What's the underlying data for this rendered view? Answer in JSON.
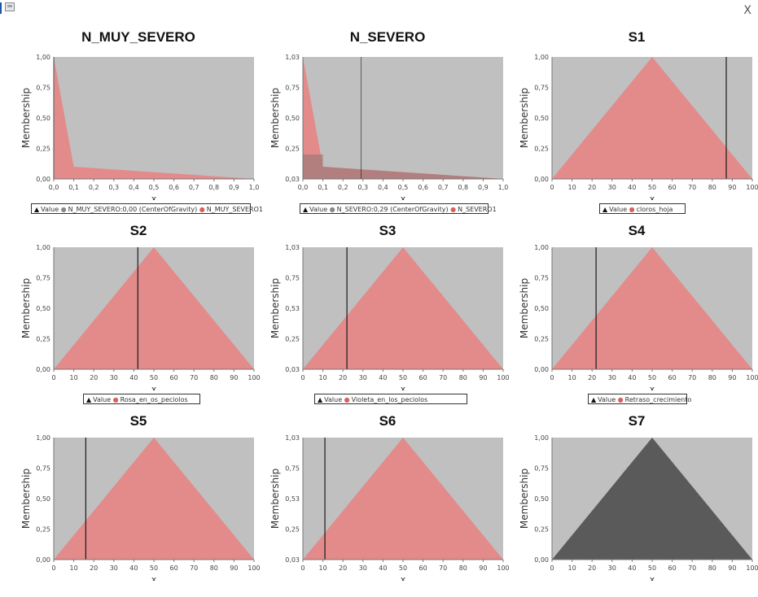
{
  "window": {
    "close_label": "X"
  },
  "axes_common": {
    "ylabel": "Membership",
    "xlabel": "x"
  },
  "colors": {
    "plot_bg": "#c0c0c0",
    "membership_fill": "#e38a8a",
    "dark_fill": "#5a5a5a",
    "value_line": "#1a1a1a"
  },
  "panels": [
    {
      "title": "N_MUY_SEVERO",
      "ytick_labels": [
        "1,00",
        "0,75",
        "0,50",
        "0,25",
        "0,00"
      ],
      "xtick_labels": [
        "0,0",
        "0,1",
        "0,2",
        "0,3",
        "0,4",
        "0,5",
        "0,6",
        "0,7",
        "0,8",
        "0,9",
        "1,0"
      ],
      "legend": [
        {
          "marker": "▲",
          "label": "Value"
        },
        {
          "marker": "●",
          "label": "N_MUY_SEVERO:0,00 (CenterOfGravity)"
        },
        {
          "marker": "●",
          "label": "N_MUY_SEVERO1"
        }
      ]
    },
    {
      "title": "N_SEVERO",
      "ytick_labels": [
        "1,03",
        "0,75",
        "0,50",
        "0,25",
        "0,03"
      ],
      "xtick_labels": [
        "0,0",
        "0,1",
        "0,2",
        "0,3",
        "0,4",
        "0,5",
        "0,6",
        "0,7",
        "0,8",
        "0,9",
        "1,0"
      ],
      "legend": [
        {
          "marker": "▲",
          "label": "Value"
        },
        {
          "marker": "●",
          "label": "N_SEVERO:0,29 (CenterOfGravity)"
        },
        {
          "marker": "●",
          "label": "N_SEVERO1"
        }
      ]
    },
    {
      "title": "S1",
      "ytick_labels": [
        "1,00",
        "0,75",
        "0,50",
        "0,25",
        "0,00"
      ],
      "xtick_labels": [
        "0",
        "10",
        "20",
        "30",
        "40",
        "50",
        "60",
        "70",
        "80",
        "90",
        "100"
      ],
      "legend": [
        {
          "marker": "▲",
          "label": "Value"
        },
        {
          "marker": "●",
          "label": "cloros_hoja"
        }
      ]
    },
    {
      "title": "S2",
      "ytick_labels": [
        "1,00",
        "0,75",
        "0,50",
        "0,25",
        "0,00"
      ],
      "xtick_labels": [
        "0",
        "10",
        "20",
        "30",
        "40",
        "50",
        "60",
        "70",
        "80",
        "90",
        "100"
      ],
      "legend": [
        {
          "marker": "▲",
          "label": "Value"
        },
        {
          "marker": "●",
          "label": "Rosa_en_os_peciolos"
        }
      ]
    },
    {
      "title": "S3",
      "ytick_labels": [
        "1,03",
        "0,75",
        "0,53",
        "0,25",
        "0,03"
      ],
      "xtick_labels": [
        "0",
        "10",
        "20",
        "30",
        "40",
        "50",
        "60",
        "70",
        "80",
        "90",
        "100"
      ],
      "legend": [
        {
          "marker": "▲",
          "label": "Value"
        },
        {
          "marker": "●",
          "label": "Violeta_en_los_peciolos"
        }
      ]
    },
    {
      "title": "S4",
      "ytick_labels": [
        "1,00",
        "0,75",
        "0,50",
        "0,25",
        "0,00"
      ],
      "xtick_labels": [
        "0",
        "10",
        "20",
        "30",
        "40",
        "50",
        "60",
        "70",
        "80",
        "90",
        "100"
      ],
      "legend": [
        {
          "marker": "▲",
          "label": "Value"
        },
        {
          "marker": "●",
          "label": "Retraso_crecimiento"
        }
      ]
    },
    {
      "title": "S5",
      "ytick_labels": [
        "1,00",
        "0,75",
        "0,50",
        "0,25",
        "0,00"
      ],
      "xtick_labels": [
        "0",
        "10",
        "20",
        "30",
        "40",
        "50",
        "60",
        "70",
        "80",
        "90",
        "100"
      ],
      "legend": []
    },
    {
      "title": "S6",
      "ytick_labels": [
        "1,03",
        "0,75",
        "0,53",
        "0,25",
        "0,03"
      ],
      "xtick_labels": [
        "0",
        "10",
        "20",
        "30",
        "40",
        "50",
        "60",
        "70",
        "80",
        "90",
        "100"
      ],
      "legend": []
    },
    {
      "title": "S7",
      "ytick_labels": [
        "1,00",
        "0,75",
        "0,50",
        "0,25",
        "0,00"
      ],
      "xtick_labels": [
        "0",
        "10",
        "20",
        "30",
        "40",
        "50",
        "60",
        "70",
        "80",
        "90",
        "100"
      ],
      "legend": []
    }
  ],
  "chart_data": [
    {
      "type": "area",
      "title": "N_MUY_SEVERO",
      "xlabel": "x",
      "ylabel": "Membership",
      "xlim": [
        0,
        1
      ],
      "ylim": [
        0,
        1
      ],
      "series": [
        {
          "name": "N_MUY_SEVERO1",
          "x": [
            0,
            0.1,
            1
          ],
          "y": [
            1,
            0.1,
            0
          ]
        }
      ],
      "defuzzified_value": 0.0
    },
    {
      "type": "area",
      "title": "N_SEVERO",
      "xlabel": "x",
      "ylabel": "Membership",
      "xlim": [
        0,
        1
      ],
      "ylim": [
        0,
        1
      ],
      "series": [
        {
          "name": "N_SEVERO1",
          "x": [
            0,
            0.1,
            1
          ],
          "y": [
            1,
            0.1,
            0
          ]
        }
      ],
      "defuzzified_value": 0.29
    },
    {
      "type": "area",
      "title": "S1",
      "xlabel": "x",
      "ylabel": "Membership",
      "xlim": [
        0,
        100
      ],
      "ylim": [
        0,
        1
      ],
      "series": [
        {
          "name": "cloros_hoja",
          "x": [
            0,
            50,
            100
          ],
          "y": [
            0,
            1,
            0
          ]
        }
      ],
      "value": 87
    },
    {
      "type": "area",
      "title": "S2",
      "xlabel": "x",
      "ylabel": "Membership",
      "xlim": [
        0,
        100
      ],
      "ylim": [
        0,
        1
      ],
      "series": [
        {
          "name": "Rosa_en_os_peciolos",
          "x": [
            0,
            50,
            100
          ],
          "y": [
            0,
            1,
            0
          ]
        }
      ],
      "value": 42
    },
    {
      "type": "area",
      "title": "S3",
      "xlabel": "x",
      "ylabel": "Membership",
      "xlim": [
        0,
        100
      ],
      "ylim": [
        0,
        1
      ],
      "series": [
        {
          "name": "Violeta_en_los_peciolos",
          "x": [
            0,
            50,
            100
          ],
          "y": [
            0,
            1,
            0
          ]
        }
      ],
      "value": 22
    },
    {
      "type": "area",
      "title": "S4",
      "xlabel": "x",
      "ylabel": "Membership",
      "xlim": [
        0,
        100
      ],
      "ylim": [
        0,
        1
      ],
      "series": [
        {
          "name": "Retraso_crecimiento",
          "x": [
            0,
            50,
            100
          ],
          "y": [
            0,
            1,
            0
          ]
        }
      ],
      "value": 22
    },
    {
      "type": "area",
      "title": "S5",
      "xlabel": "x",
      "ylabel": "Membership",
      "xlim": [
        0,
        100
      ],
      "ylim": [
        0,
        1
      ],
      "series": [
        {
          "x": [
            0,
            50,
            100
          ],
          "y": [
            0,
            1,
            0
          ]
        }
      ],
      "value": 16
    },
    {
      "type": "area",
      "title": "S6",
      "xlabel": "x",
      "ylabel": "Membership",
      "xlim": [
        0,
        100
      ],
      "ylim": [
        0,
        1
      ],
      "series": [
        {
          "x": [
            0,
            50,
            100
          ],
          "y": [
            0,
            1,
            0
          ]
        }
      ],
      "value": 11
    },
    {
      "type": "area",
      "title": "S7",
      "xlabel": "x",
      "ylabel": "Membership",
      "xlim": [
        0,
        100
      ],
      "ylim": [
        0,
        1
      ],
      "series": [
        {
          "x": [
            0,
            50,
            100
          ],
          "y": [
            0,
            1,
            0
          ]
        }
      ],
      "fill": "dark"
    }
  ]
}
